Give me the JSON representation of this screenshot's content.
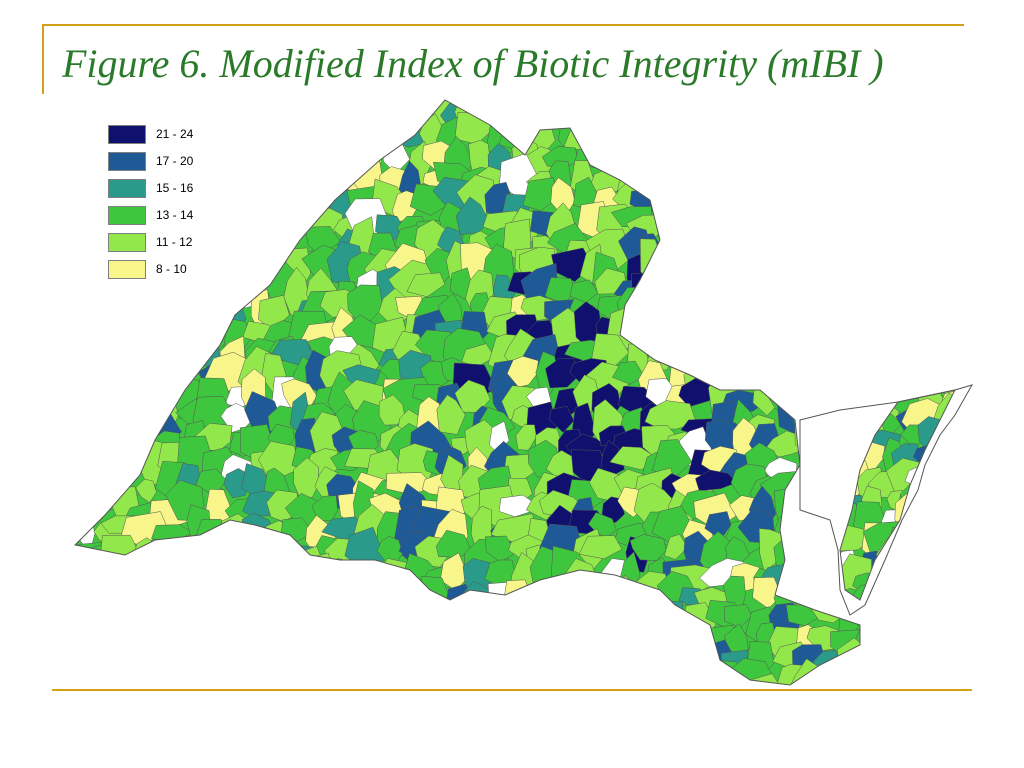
{
  "title": "Figure 6. Modified Index of  Biotic Integrity (mIBI )",
  "colors": {
    "title": "#2a7a2a",
    "rule": "#d4a017",
    "outline": "#555555",
    "noData": "#ffffff"
  },
  "legend": [
    {
      "label": "21 - 24",
      "color": "#10106e"
    },
    {
      "label": "17 - 20",
      "color": "#1e5a96"
    },
    {
      "label": "15 - 16",
      "color": "#2a9a8a"
    },
    {
      "label": "13 - 14",
      "color": "#3fc63f"
    },
    {
      "label": "11 - 12",
      "color": "#92e84a"
    },
    {
      "label": "8 - 10",
      "color": "#f8f58a"
    }
  ]
}
